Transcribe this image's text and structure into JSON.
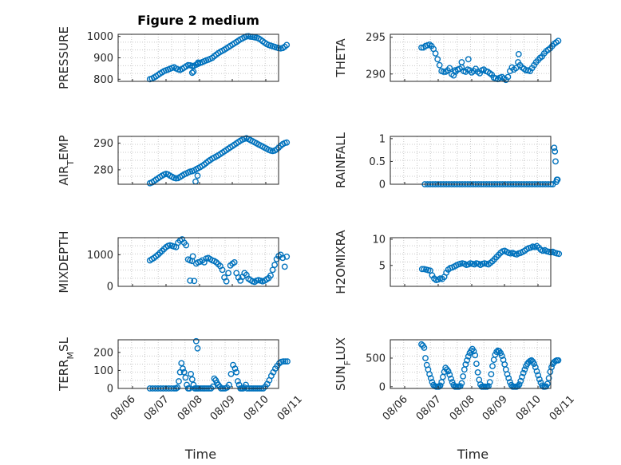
{
  "figure": {
    "title": "Figure 2 medium",
    "x_ticks": [
      "08/06",
      "08/07",
      "08/08",
      "08/09",
      "08/10",
      "08/11"
    ],
    "xlabel": "Time",
    "marker_color": "#0072bd",
    "grid": "minor dotted"
  },
  "chart_data": [
    {
      "type": "scatter",
      "id": "pressure",
      "ylabel": "PRESSURE",
      "title": "Figure 2 medium",
      "xlabel": "",
      "yticks": [
        "800",
        "900",
        "1000"
      ],
      "ylim": [
        790,
        1010
      ],
      "xlim": [
        0,
        5
      ],
      "grid": true,
      "x": [
        0.52,
        0.58,
        0.64,
        0.7,
        0.76,
        0.82,
        0.88,
        0.94,
        1.0,
        1.06,
        1.12,
        1.18,
        1.24,
        1.3,
        1.36,
        1.42,
        1.48,
        1.54,
        1.6,
        1.66,
        1.72,
        1.78,
        1.84,
        1.9,
        1.96,
        2.02,
        2.08,
        2.14,
        2.2,
        2.26,
        2.32,
        2.38,
        2.44,
        2.5,
        2.56,
        2.62,
        2.68,
        2.74,
        2.8,
        2.86,
        2.92,
        2.98,
        3.04,
        3.1,
        3.16,
        3.22,
        3.28,
        3.34,
        3.4,
        3.46,
        3.52,
        3.58,
        3.64,
        3.7,
        3.76,
        3.82,
        3.88,
        3.94,
        4.0,
        4.06,
        4.12,
        4.18,
        4.24,
        4.3,
        4.36,
        4.42,
        4.48,
        4.54,
        4.6,
        1.78,
        1.82,
        1.94,
        1.96
      ],
      "y": [
        800,
        803,
        808,
        813,
        820,
        826,
        832,
        838,
        842,
        845,
        849,
        853,
        856,
        850,
        846,
        843,
        848,
        854,
        860,
        866,
        865,
        862,
        863,
        868,
        872,
        876,
        880,
        884,
        888,
        891,
        895,
        900,
        908,
        915,
        922,
        928,
        933,
        938,
        944,
        950,
        956,
        962,
        968,
        974,
        980,
        986,
        991,
        996,
        1000,
        1001,
        999,
        998,
        996,
        994,
        991,
        985,
        978,
        971,
        965,
        960,
        957,
        954,
        951,
        948,
        945,
        944,
        946,
        952,
        960,
        830,
        835,
        872,
        878
      ]
    },
    {
      "type": "scatter",
      "id": "theta",
      "ylabel": "THETA",
      "xlabel": "",
      "yticks": [
        "290",
        "295"
      ],
      "ylim": [
        289,
        295.4
      ],
      "xlim": [
        0,
        5
      ],
      "grid": true,
      "x": [
        0.5,
        0.56,
        0.62,
        0.68,
        0.74,
        0.8,
        0.86,
        0.92,
        0.98,
        1.04,
        1.1,
        1.16,
        1.22,
        1.28,
        1.34,
        1.4,
        1.46,
        1.52,
        1.58,
        1.64,
        1.7,
        1.76,
        1.82,
        1.88,
        1.94,
        2.0,
        2.06,
        2.12,
        2.18,
        2.24,
        2.3,
        2.36,
        2.42,
        2.48,
        2.54,
        2.6,
        2.66,
        2.72,
        2.78,
        2.84,
        2.9,
        2.96,
        3.02,
        3.08,
        3.14,
        3.2,
        3.26,
        3.32,
        3.38,
        3.44,
        3.5,
        3.56,
        3.62,
        3.68,
        3.74,
        3.8,
        3.86,
        3.92,
        3.98,
        4.04,
        4.1,
        4.16,
        4.22,
        4.28,
        4.34,
        4.4,
        4.46,
        4.52,
        4.58,
        1.5,
        1.7,
        1.9,
        3.4
      ],
      "y": [
        293.6,
        293.6,
        293.8,
        293.9,
        294.0,
        293.8,
        293.4,
        292.8,
        292.0,
        291.2,
        290.4,
        290.3,
        290.3,
        290.5,
        290.8,
        290.0,
        289.8,
        290.3,
        290.6,
        290.7,
        290.9,
        290.4,
        290.3,
        290.6,
        290.5,
        290.2,
        290.4,
        290.7,
        290.3,
        290.1,
        290.5,
        290.6,
        290.4,
        290.3,
        290.1,
        289.9,
        289.5,
        289.4,
        289.3,
        289.5,
        289.6,
        289.4,
        289.2,
        289.6,
        290.4,
        290.9,
        290.6,
        290.8,
        291.6,
        291.2,
        290.9,
        290.7,
        290.5,
        290.5,
        290.4,
        290.8,
        291.2,
        291.6,
        291.9,
        292.2,
        292.4,
        292.8,
        293.1,
        293.3,
        293.5,
        293.8,
        294.1,
        294.3,
        294.5,
        290.5,
        291.6,
        292.0,
        292.7
      ]
    },
    {
      "type": "scatter",
      "id": "air_temp",
      "ylabel": "AIR_TEMP",
      "xlabel": "",
      "yticks": [
        "280",
        "290"
      ],
      "ylim": [
        274.6,
        292.5
      ],
      "xlim": [
        0,
        5
      ],
      "grid": true,
      "x": [
        0.52,
        0.58,
        0.64,
        0.7,
        0.76,
        0.82,
        0.88,
        0.94,
        1.0,
        1.06,
        1.12,
        1.18,
        1.24,
        1.3,
        1.36,
        1.42,
        1.48,
        1.54,
        1.6,
        1.66,
        1.72,
        1.78,
        1.84,
        1.9,
        1.96,
        2.02,
        2.08,
        2.14,
        2.2,
        2.26,
        2.32,
        2.38,
        2.44,
        2.5,
        2.56,
        2.62,
        2.68,
        2.74,
        2.8,
        2.86,
        2.92,
        2.98,
        3.04,
        3.1,
        3.16,
        3.22,
        3.28,
        3.34,
        3.4,
        3.46,
        3.52,
        3.58,
        3.64,
        3.7,
        3.76,
        3.82,
        3.88,
        3.94,
        4.0,
        4.06,
        4.12,
        4.18,
        4.24,
        4.3,
        4.36,
        4.42,
        4.48,
        4.54,
        4.6,
        1.88,
        1.94
      ],
      "y": [
        275.0,
        275.3,
        275.8,
        276.3,
        276.8,
        277.3,
        277.8,
        278.2,
        278.5,
        278.3,
        277.8,
        277.4,
        277.0,
        276.8,
        276.9,
        277.3,
        277.8,
        278.3,
        278.6,
        279.0,
        279.3,
        279.5,
        279.8,
        280.2,
        280.6,
        281.0,
        281.5,
        282.0,
        282.6,
        283.2,
        283.7,
        284.2,
        284.6,
        285.0,
        285.4,
        285.9,
        286.4,
        286.9,
        287.4,
        287.9,
        288.4,
        288.9,
        289.4,
        289.9,
        290.4,
        290.9,
        291.3,
        291.6,
        291.8,
        291.5,
        291.1,
        290.7,
        290.3,
        289.9,
        289.5,
        289.1,
        288.7,
        288.3,
        287.9,
        287.5,
        287.2,
        287.0,
        287.2,
        287.6,
        288.3,
        289.0,
        289.6,
        290.0,
        290.2,
        275.6,
        277.8
      ]
    },
    {
      "type": "scatter",
      "id": "rainfall",
      "ylabel": "RAINFALL",
      "xlabel": "",
      "yticks": [
        "0",
        "0.5",
        "1"
      ],
      "ylim": [
        0,
        1.05
      ],
      "xlim": [
        0,
        5
      ],
      "grid": true,
      "x": [
        0.6,
        0.68,
        0.76,
        0.84,
        0.92,
        1.0,
        1.08,
        1.16,
        1.24,
        1.32,
        1.4,
        1.48,
        1.56,
        1.64,
        1.72,
        1.8,
        1.88,
        1.96,
        2.04,
        2.12,
        2.2,
        2.28,
        2.36,
        2.44,
        2.52,
        2.6,
        2.68,
        2.76,
        2.84,
        2.92,
        3.0,
        3.08,
        3.16,
        3.24,
        3.32,
        3.4,
        3.48,
        3.56,
        3.64,
        3.72,
        3.8,
        3.88,
        3.96,
        4.04,
        4.12,
        4.2,
        4.28,
        4.36,
        4.42,
        4.46,
        4.48,
        4.5,
        4.52,
        4.54,
        4.56
      ],
      "y": [
        0,
        0,
        0,
        0,
        0,
        0,
        0,
        0,
        0,
        0,
        0,
        0,
        0,
        0,
        0,
        0,
        0,
        0,
        0,
        0,
        0,
        0,
        0,
        0,
        0,
        0,
        0,
        0,
        0,
        0,
        0,
        0,
        0,
        0,
        0,
        0,
        0,
        0,
        0,
        0,
        0,
        0,
        0,
        0,
        0,
        0,
        0,
        0,
        0,
        0.8,
        0.72,
        0.5,
        0.05,
        0.1,
        0.1
      ]
    },
    {
      "type": "scatter",
      "id": "mixdepth",
      "ylabel": "MIXDEPTH",
      "xlabel": "",
      "yticks": [
        "0",
        "1000"
      ],
      "ylim": [
        0,
        1540
      ],
      "xlim": [
        0,
        5
      ],
      "grid": true,
      "x": [
        0.52,
        0.58,
        0.64,
        0.7,
        0.76,
        0.82,
        0.88,
        0.94,
        1.0,
        1.06,
        1.12,
        1.18,
        1.24,
        1.3,
        1.36,
        1.42,
        1.48,
        1.54,
        1.6,
        1.66,
        1.72,
        1.78,
        1.84,
        1.9,
        1.96,
        2.02,
        2.08,
        2.14,
        2.2,
        2.26,
        2.32,
        2.38,
        2.44,
        2.5,
        2.56,
        2.62,
        2.68,
        2.74,
        2.8,
        2.86,
        2.92,
        2.98,
        3.04,
        3.1,
        3.16,
        3.22,
        3.28,
        3.34,
        3.4,
        3.46,
        3.52,
        3.58,
        3.64,
        3.7,
        3.76,
        3.82,
        3.88,
        3.94,
        4.0,
        4.06,
        4.12,
        4.18,
        4.24,
        4.3,
        4.36,
        4.42,
        4.48,
        4.54,
        4.6,
        1.72,
        1.8
      ],
      "y": [
        820,
        860,
        900,
        950,
        1000,
        1060,
        1120,
        1180,
        1240,
        1280,
        1300,
        1280,
        1260,
        1240,
        1380,
        1450,
        1490,
        1380,
        1300,
        850,
        180,
        800,
        170,
        720,
        760,
        780,
        820,
        760,
        880,
        900,
        860,
        820,
        800,
        760,
        700,
        640,
        520,
        280,
        160,
        420,
        660,
        720,
        760,
        420,
        280,
        180,
        300,
        420,
        360,
        240,
        200,
        160,
        140,
        180,
        200,
        180,
        160,
        180,
        220,
        260,
        340,
        520,
        680,
        860,
        960,
        1000,
        900,
        620,
        940,
        820,
        950
      ]
    },
    {
      "type": "scatter",
      "id": "h2omixra",
      "ylabel": "H2OMIXRA",
      "xlabel": "",
      "yticks": [
        "5",
        "10"
      ],
      "ylim": [
        1.0,
        10.3
      ],
      "xlim": [
        0,
        5
      ],
      "grid": true,
      "x": [
        0.52,
        0.58,
        0.64,
        0.7,
        0.76,
        0.82,
        0.88,
        0.94,
        1.0,
        1.06,
        1.12,
        1.18,
        1.24,
        1.3,
        1.36,
        1.42,
        1.48,
        1.54,
        1.6,
        1.66,
        1.72,
        1.78,
        1.84,
        1.9,
        1.96,
        2.02,
        2.08,
        2.14,
        2.2,
        2.26,
        2.32,
        2.38,
        2.44,
        2.5,
        2.56,
        2.62,
        2.68,
        2.74,
        2.8,
        2.86,
        2.92,
        2.98,
        3.04,
        3.1,
        3.16,
        3.22,
        3.28,
        3.34,
        3.4,
        3.46,
        3.52,
        3.58,
        3.64,
        3.7,
        3.76,
        3.82,
        3.88,
        3.94,
        4.0,
        4.06,
        4.12,
        4.18,
        4.24,
        4.3,
        4.36,
        4.42,
        4.48,
        4.54,
        4.6
      ],
      "y": [
        4.3,
        4.3,
        4.2,
        4.1,
        4.0,
        3.1,
        2.5,
        2.2,
        2.3,
        2.5,
        2.4,
        2.8,
        3.6,
        4.2,
        4.5,
        4.6,
        4.8,
        5.0,
        5.2,
        5.3,
        5.4,
        5.3,
        5.1,
        5.2,
        5.4,
        5.3,
        5.2,
        5.4,
        5.3,
        5.1,
        5.3,
        5.4,
        5.3,
        5.2,
        5.5,
        5.8,
        6.2,
        6.6,
        7.0,
        7.4,
        7.7,
        7.8,
        7.6,
        7.4,
        7.3,
        7.4,
        7.2,
        7.1,
        7.3,
        7.4,
        7.6,
        7.8,
        8.1,
        8.3,
        8.4,
        8.6,
        8.5,
        8.7,
        8.4,
        8.0,
        7.8,
        7.9,
        7.7,
        7.6,
        7.5,
        7.6,
        7.4,
        7.3,
        7.2
      ]
    },
    {
      "type": "scatter",
      "id": "terr_msl",
      "ylabel": "TERR_MSL",
      "xlabel": "",
      "yticks": [
        "0",
        "100",
        "200"
      ],
      "ylim": [
        0,
        270
      ],
      "xlim": [
        0,
        5
      ],
      "grid": true,
      "x": [
        0.52,
        0.6,
        0.68,
        0.76,
        0.84,
        0.92,
        1.0,
        1.08,
        1.16,
        1.24,
        1.3,
        1.34,
        1.38,
        1.42,
        1.46,
        1.5,
        1.54,
        1.58,
        1.62,
        1.66,
        1.7,
        1.74,
        1.78,
        1.82,
        1.86,
        1.9,
        1.94,
        1.98,
        2.04,
        2.1,
        2.16,
        2.22,
        2.28,
        2.34,
        2.4,
        2.44,
        2.48,
        2.52,
        2.56,
        2.6,
        2.64,
        2.7,
        2.76,
        2.82,
        2.88,
        2.94,
        3.0,
        3.06,
        3.1,
        3.14,
        3.18,
        3.22,
        3.26,
        3.3,
        3.34,
        3.38,
        3.42,
        3.48,
        3.54,
        3.6,
        3.66,
        3.72,
        3.78,
        3.84,
        3.9,
        3.96,
        4.02,
        4.08,
        4.14,
        4.2,
        4.26,
        4.32,
        4.38,
        4.44,
        4.5,
        4.56,
        4.62,
        1.9,
        1.94
      ],
      "y": [
        0,
        0,
        0,
        0,
        0,
        0,
        0,
        0,
        0,
        0,
        0,
        5,
        40,
        90,
        140,
        110,
        90,
        60,
        20,
        0,
        0,
        80,
        50,
        20,
        0,
        0,
        0,
        0,
        0,
        0,
        0,
        0,
        0,
        0,
        10,
        55,
        45,
        30,
        20,
        10,
        0,
        0,
        0,
        5,
        20,
        80,
        130,
        110,
        90,
        40,
        20,
        0,
        0,
        0,
        5,
        20,
        0,
        0,
        0,
        0,
        0,
        0,
        0,
        0,
        0,
        10,
        25,
        45,
        70,
        90,
        110,
        125,
        140,
        148,
        150,
        150,
        150,
        262,
        222
      ]
    },
    {
      "type": "scatter",
      "id": "sun_flux",
      "ylabel": "SUN_FLUX",
      "xlabel": "",
      "yticks": [
        "0",
        "500"
      ],
      "ylim": [
        -30,
        820
      ],
      "xlim": [
        0,
        5
      ],
      "grid": true,
      "x": [
        0.5,
        0.54,
        0.58,
        0.62,
        0.66,
        0.7,
        0.74,
        0.78,
        0.82,
        0.86,
        0.9,
        0.94,
        0.98,
        1.02,
        1.06,
        1.1,
        1.14,
        1.18,
        1.22,
        1.26,
        1.3,
        1.34,
        1.38,
        1.42,
        1.46,
        1.5,
        1.54,
        1.58,
        1.62,
        1.66,
        1.7,
        1.74,
        1.78,
        1.82,
        1.86,
        1.9,
        1.94,
        1.98,
        2.02,
        2.06,
        2.1,
        2.14,
        2.18,
        2.22,
        2.26,
        2.3,
        2.34,
        2.38,
        2.42,
        2.46,
        2.5,
        2.54,
        2.58,
        2.62,
        2.66,
        2.7,
        2.74,
        2.78,
        2.82,
        2.86,
        2.9,
        2.94,
        2.98,
        3.02,
        3.06,
        3.1,
        3.14,
        3.18,
        3.22,
        3.26,
        3.3,
        3.34,
        3.38,
        3.42,
        3.46,
        3.5,
        3.54,
        3.58,
        3.62,
        3.66,
        3.7,
        3.74,
        3.78,
        3.82,
        3.86,
        3.9,
        3.94,
        3.98,
        4.02,
        4.06,
        4.1,
        4.14,
        4.18,
        4.22,
        4.26,
        4.3,
        4.34,
        4.38,
        4.42,
        4.46,
        4.5,
        4.54,
        4.58
      ],
      "y": [
        740,
        720,
        680,
        500,
        380,
        300,
        220,
        150,
        80,
        30,
        10,
        0,
        0,
        0,
        20,
        80,
        170,
        260,
        330,
        300,
        270,
        210,
        140,
        80,
        30,
        0,
        0,
        0,
        0,
        10,
        60,
        180,
        300,
        390,
        460,
        530,
        590,
        630,
        660,
        620,
        550,
        400,
        250,
        120,
        40,
        0,
        0,
        0,
        0,
        0,
        10,
        80,
        220,
        360,
        470,
        560,
        610,
        630,
        620,
        590,
        540,
        470,
        390,
        300,
        220,
        150,
        80,
        30,
        0,
        0,
        0,
        0,
        10,
        40,
        100,
        170,
        240,
        300,
        360,
        400,
        430,
        450,
        460,
        440,
        400,
        340,
        270,
        200,
        130,
        70,
        20,
        0,
        0,
        5,
        50,
        150,
        260,
        340,
        400,
        430,
        450,
        460,
        460
      ]
    }
  ]
}
